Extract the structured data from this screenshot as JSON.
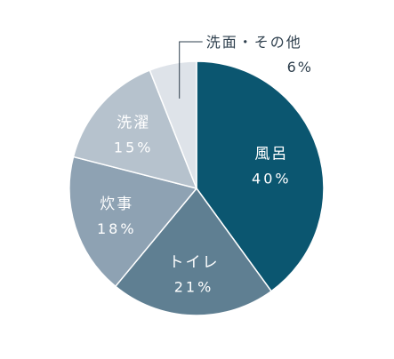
{
  "chart_data": {
    "type": "pie",
    "categories": [
      "風呂",
      "トイレ",
      "炊事",
      "洗濯",
      "洗面・その他"
    ],
    "values": [
      40,
      21,
      18,
      15,
      6
    ],
    "value_labels": [
      "40%",
      "21%",
      "18%",
      "15%",
      "6%"
    ],
    "colors": [
      "#0b5670",
      "#5f7f92",
      "#8ea2b3",
      "#b6c2cd",
      "#dee3e9"
    ],
    "label_colors": [
      "#ffffff",
      "#ffffff",
      "#ffffff",
      "#ffffff",
      "#2e3f4d"
    ],
    "start": "top",
    "direction": "clockwise",
    "legend": "none"
  }
}
